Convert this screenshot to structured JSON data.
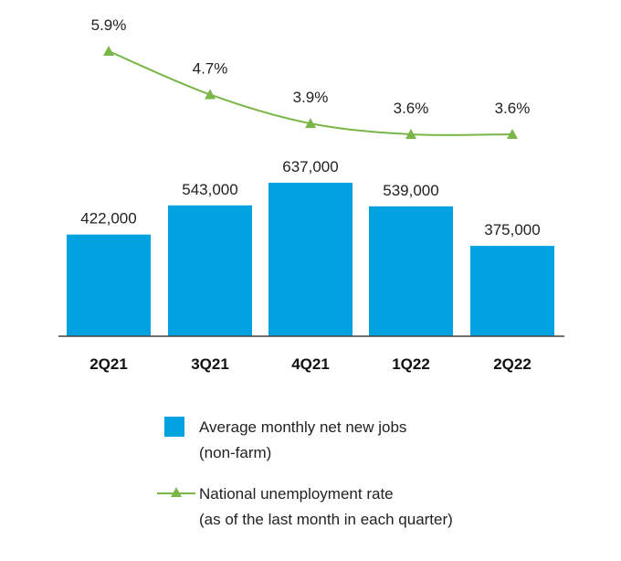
{
  "chart_data": {
    "type": "bar",
    "categories": [
      "2Q21",
      "3Q21",
      "4Q21",
      "1Q22",
      "2Q22"
    ],
    "series": [
      {
        "name": "Average monthly net new jobs (non-farm)",
        "kind": "bar",
        "values": [
          422000,
          543000,
          637000,
          539000,
          375000
        ],
        "labels": [
          "422,000",
          "543,000",
          "637,000",
          "539,000",
          "375,000"
        ],
        "color": "#00a3e0"
      },
      {
        "name": "National unemployment rate (as of the last month in each quarter)",
        "kind": "line",
        "values": [
          5.9,
          4.7,
          3.9,
          3.6,
          3.6
        ],
        "labels": [
          "5.9%",
          "4.7%",
          "3.9%",
          "3.6%",
          "3.6%"
        ],
        "color": "#7ab648",
        "marker": "triangle"
      }
    ],
    "legend": {
      "placement": "bottom",
      "items": [
        {
          "line1": "Average monthly net new jobs",
          "line2": "(non-farm)"
        },
        {
          "line1": "National unemployment rate",
          "line2": "(as of the last month in each quarter)"
        }
      ]
    },
    "bar_ylim": [
      0,
      637000
    ],
    "line_ylim": [
      3.6,
      5.9
    ],
    "grid": false
  }
}
